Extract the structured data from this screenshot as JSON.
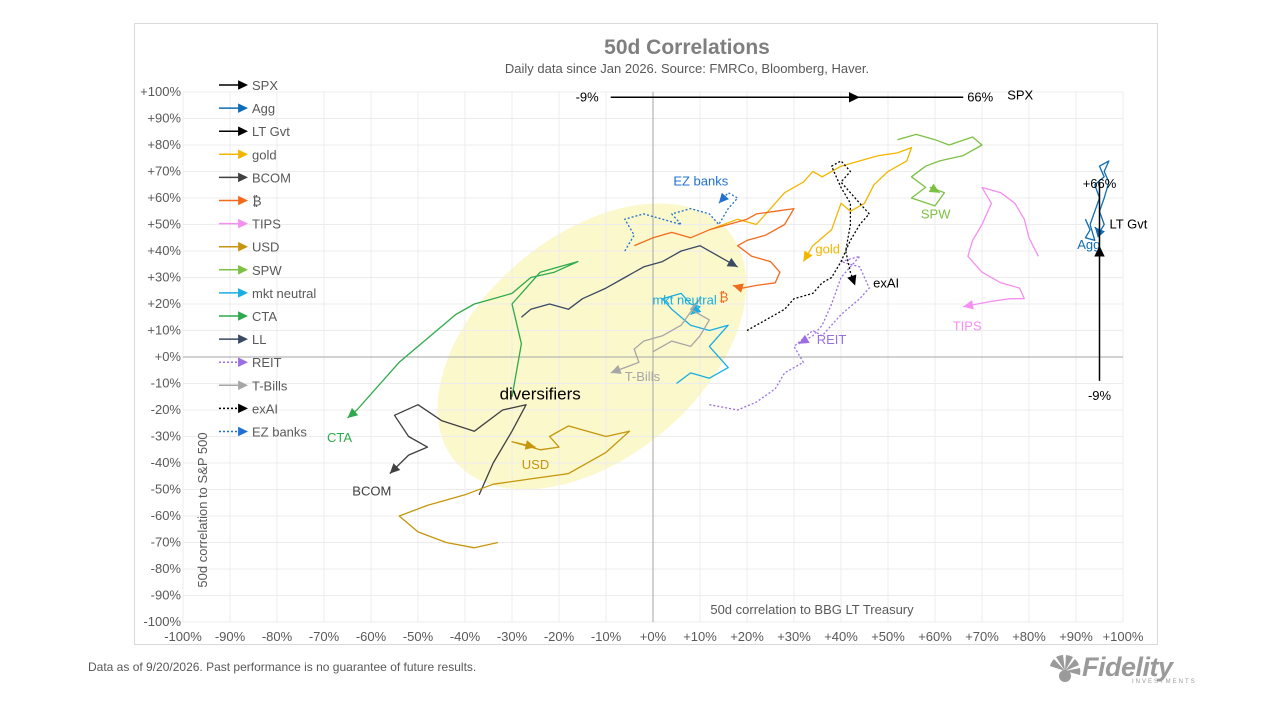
{
  "footnote": "Data as of 9/20/2026. Past performance is no guarantee of future results.",
  "logo": {
    "word": "Fidelity",
    "sub": "INVESTMENTS",
    "color": "#9a9a9a"
  },
  "chart_data": {
    "type": "scatter",
    "title": "50d Correlations",
    "subtitle": "Daily data since Jan 2026.  Source: FMRCo, Bloomberg, Haver.",
    "xlabel": "50d correlation to BBG LT Treasury",
    "ylabel": "50d correlation to S&P 500",
    "xlim": [
      -100,
      100
    ],
    "ylim": [
      -100,
      100
    ],
    "xticks": [
      "-100%",
      "-90%",
      "-80%",
      "-70%",
      "-60%",
      "-50%",
      "-40%",
      "-30%",
      "-20%",
      "-10%",
      "+0%",
      "+10%",
      "+20%",
      "+30%",
      "+40%",
      "+50%",
      "+60%",
      "+70%",
      "+80%",
      "+90%",
      "+100%"
    ],
    "yticks": [
      "+100%",
      "+90%",
      "+80%",
      "+70%",
      "+60%",
      "+50%",
      "+40%",
      "+30%",
      "+20%",
      "+10%",
      "+0%",
      "-10%",
      "-20%",
      "-30%",
      "-40%",
      "-50%",
      "-60%",
      "-70%",
      "-80%",
      "-90%",
      "-100%"
    ],
    "grid": true,
    "legend_position": "top-left",
    "highlight": {
      "label": "diversifiers",
      "center": [
        -13,
        4
      ],
      "radius_x": 38,
      "radius_y": 42,
      "rotation_deg": 40,
      "color": "#fbf8cc"
    },
    "spx_arrow": {
      "start": -9,
      "end": 66,
      "y": 98,
      "start_label": "-9%",
      "end_label": "66%",
      "series_label": "SPX"
    },
    "ltgvt_arrow": {
      "start": -9,
      "end": 66,
      "x": 95,
      "start_label": "-9%",
      "end_label": "+66%",
      "series_label": "LT Gvt"
    },
    "series": [
      {
        "name": "SPX",
        "color": "#000000",
        "dash": false,
        "points": []
      },
      {
        "name": "Agg",
        "color": "#0e6db5",
        "dash": false,
        "end_label": "Agg",
        "points": [
          [
            92,
            52
          ],
          [
            93,
            48
          ],
          [
            92,
            45
          ],
          [
            94,
            44
          ],
          [
            93,
            50
          ],
          [
            94,
            55
          ],
          [
            95,
            60
          ],
          [
            94,
            65
          ],
          [
            96,
            68
          ],
          [
            95,
            72
          ],
          [
            97,
            74
          ],
          [
            96,
            70
          ],
          [
            97,
            66
          ],
          [
            96,
            60
          ],
          [
            95,
            55
          ],
          [
            96,
            50
          ],
          [
            95,
            47
          ],
          [
            94,
            49
          ]
        ]
      },
      {
        "name": "LT Gvt",
        "color": "#000000",
        "dash": false,
        "points": []
      },
      {
        "name": "gold",
        "color": "#f2b600",
        "dash": false,
        "end_label": "gold",
        "points": [
          [
            12,
            48
          ],
          [
            18,
            52
          ],
          [
            22,
            50
          ],
          [
            26,
            58
          ],
          [
            28,
            62
          ],
          [
            32,
            66
          ],
          [
            34,
            70
          ],
          [
            36,
            68
          ],
          [
            40,
            72
          ],
          [
            44,
            74
          ],
          [
            48,
            76
          ],
          [
            52,
            77
          ],
          [
            55,
            79
          ],
          [
            54,
            74
          ],
          [
            50,
            70
          ],
          [
            47,
            65
          ],
          [
            45,
            58
          ],
          [
            42,
            55
          ],
          [
            40,
            58
          ],
          [
            38,
            48
          ],
          [
            34,
            42
          ],
          [
            32,
            36
          ]
        ]
      },
      {
        "name": "BCOM",
        "color": "#404040",
        "dash": false,
        "end_label": "BCOM",
        "points": [
          [
            -37,
            -52
          ],
          [
            -34,
            -40
          ],
          [
            -30,
            -28
          ],
          [
            -27,
            -18
          ],
          [
            -32,
            -20
          ],
          [
            -38,
            -28
          ],
          [
            -45,
            -24
          ],
          [
            -50,
            -18
          ],
          [
            -55,
            -22
          ],
          [
            -52,
            -30
          ],
          [
            -48,
            -34
          ],
          [
            -52,
            -37
          ],
          [
            -56,
            -44
          ]
        ]
      },
      {
        "name": "₿",
        "color": "#f26b1d",
        "dash": false,
        "end_label": "₿",
        "points": [
          [
            -4,
            42
          ],
          [
            0,
            45
          ],
          [
            4,
            47
          ],
          [
            8,
            45
          ],
          [
            12,
            48
          ],
          [
            16,
            50
          ],
          [
            20,
            52
          ],
          [
            22,
            54
          ],
          [
            26,
            55
          ],
          [
            30,
            56
          ],
          [
            28,
            50
          ],
          [
            24,
            46
          ],
          [
            20,
            44
          ],
          [
            18,
            42
          ],
          [
            21,
            38
          ],
          [
            25,
            36
          ],
          [
            27,
            32
          ],
          [
            26,
            28
          ],
          [
            22,
            27
          ],
          [
            19,
            26
          ],
          [
            17,
            27
          ]
        ]
      },
      {
        "name": "TIPS",
        "color": "#f58ff0",
        "dash": false,
        "end_label": "TIPS",
        "points": [
          [
            82,
            38
          ],
          [
            80,
            45
          ],
          [
            79,
            52
          ],
          [
            77,
            58
          ],
          [
            74,
            62
          ],
          [
            70,
            64
          ],
          [
            72,
            58
          ],
          [
            70,
            50
          ],
          [
            68,
            44
          ],
          [
            67,
            38
          ],
          [
            70,
            32
          ],
          [
            74,
            28
          ],
          [
            78,
            26
          ],
          [
            79,
            22
          ],
          [
            76,
            22
          ],
          [
            72,
            21
          ],
          [
            69,
            20
          ],
          [
            66,
            19
          ]
        ]
      },
      {
        "name": "USD",
        "color": "#c5960c",
        "dash": false,
        "end_label": "USD",
        "points": [
          [
            -33,
            -70
          ],
          [
            -38,
            -72
          ],
          [
            -44,
            -70
          ],
          [
            -50,
            -66
          ],
          [
            -54,
            -60
          ],
          [
            -48,
            -56
          ],
          [
            -40,
            -52
          ],
          [
            -34,
            -48
          ],
          [
            -26,
            -46
          ],
          [
            -18,
            -44
          ],
          [
            -10,
            -36
          ],
          [
            -5,
            -28
          ],
          [
            -10,
            -30
          ],
          [
            -18,
            -26
          ],
          [
            -22,
            -30
          ],
          [
            -20,
            -34
          ],
          [
            -24,
            -35
          ],
          [
            -28,
            -33
          ],
          [
            -30,
            -32
          ],
          [
            -25,
            -34
          ]
        ]
      },
      {
        "name": "SPW",
        "color": "#7cc143",
        "dash": false,
        "end_label": "SPW",
        "points": [
          [
            52,
            82
          ],
          [
            56,
            84
          ],
          [
            60,
            82
          ],
          [
            63,
            80
          ],
          [
            68,
            83
          ],
          [
            70,
            80
          ],
          [
            66,
            76
          ],
          [
            61,
            74
          ],
          [
            58,
            72
          ],
          [
            55,
            68
          ],
          [
            58,
            64
          ],
          [
            55,
            60
          ],
          [
            60,
            57
          ],
          [
            62,
            62
          ],
          [
            59,
            64
          ],
          [
            61,
            62
          ]
        ]
      },
      {
        "name": "mkt neutral",
        "color": "#19aee0",
        "dash": false,
        "end_label": "mkt neutral",
        "points": [
          [
            5,
            -10
          ],
          [
            8,
            -6
          ],
          [
            12,
            -8
          ],
          [
            16,
            -4
          ],
          [
            12,
            4
          ],
          [
            14,
            8
          ],
          [
            16,
            12
          ],
          [
            12,
            10
          ],
          [
            8,
            12
          ],
          [
            4,
            18
          ],
          [
            2,
            22
          ],
          [
            6,
            24
          ],
          [
            8,
            20
          ],
          [
            10,
            19
          ],
          [
            8,
            16
          ]
        ]
      },
      {
        "name": "CTA",
        "color": "#2eaa4d",
        "dash": false,
        "end_label": "CTA",
        "points": [
          [
            -30,
            -15
          ],
          [
            -28,
            5
          ],
          [
            -30,
            20
          ],
          [
            -26,
            28
          ],
          [
            -24,
            32
          ],
          [
            -20,
            34
          ],
          [
            -16,
            36
          ],
          [
            -21,
            32
          ],
          [
            -26,
            30
          ],
          [
            -30,
            24
          ],
          [
            -34,
            22
          ],
          [
            -38,
            20
          ],
          [
            -42,
            16
          ],
          [
            -46,
            10
          ],
          [
            -50,
            4
          ],
          [
            -54,
            -2
          ],
          [
            -57,
            -8
          ],
          [
            -60,
            -14
          ],
          [
            -63,
            -20
          ],
          [
            -65,
            -23
          ]
        ]
      },
      {
        "name": "LL",
        "color": "#3a4a63",
        "dash": false,
        "points": [
          [
            -28,
            15
          ],
          [
            -26,
            18
          ],
          [
            -22,
            20
          ],
          [
            -18,
            18
          ],
          [
            -15,
            22
          ],
          [
            -10,
            26
          ],
          [
            -6,
            30
          ],
          [
            -2,
            34
          ],
          [
            2,
            36
          ],
          [
            6,
            40
          ],
          [
            10,
            42
          ],
          [
            14,
            38
          ],
          [
            18,
            34
          ]
        ]
      },
      {
        "name": "REIT",
        "color": "#9b6fe2",
        "dash": true,
        "end_label": "REIT",
        "points": [
          [
            12,
            -18
          ],
          [
            18,
            -20
          ],
          [
            22,
            -17
          ],
          [
            26,
            -12
          ],
          [
            28,
            -6
          ],
          [
            32,
            -2
          ],
          [
            30,
            4
          ],
          [
            34,
            10
          ],
          [
            36,
            8
          ],
          [
            40,
            16
          ],
          [
            44,
            22
          ],
          [
            46,
            26
          ],
          [
            44,
            34
          ],
          [
            40,
            36
          ],
          [
            44,
            38
          ],
          [
            40,
            30
          ],
          [
            38,
            20
          ],
          [
            36,
            12
          ],
          [
            34,
            8
          ],
          [
            31,
            5
          ]
        ]
      },
      {
        "name": "T-Bills",
        "color": "#a6a6a6",
        "dash": false,
        "end_label": "T-Bills",
        "points": [
          [
            0,
            2
          ],
          [
            4,
            6
          ],
          [
            8,
            4
          ],
          [
            10,
            8
          ],
          [
            12,
            14
          ],
          [
            8,
            18
          ],
          [
            10,
            22
          ],
          [
            6,
            12
          ],
          [
            2,
            8
          ],
          [
            -2,
            6
          ],
          [
            -4,
            3
          ],
          [
            -3,
            -2
          ],
          [
            -6,
            -4
          ],
          [
            -9,
            -6
          ]
        ]
      },
      {
        "name": "exAI",
        "color": "#000000",
        "dash": true,
        "end_label": "exAI",
        "points": [
          [
            20,
            10
          ],
          [
            24,
            14
          ],
          [
            28,
            18
          ],
          [
            30,
            22
          ],
          [
            34,
            24
          ],
          [
            36,
            28
          ],
          [
            38,
            30
          ],
          [
            40,
            36
          ],
          [
            42,
            44
          ],
          [
            44,
            50
          ],
          [
            46,
            54
          ],
          [
            44,
            58
          ],
          [
            42,
            62
          ],
          [
            40,
            66
          ],
          [
            42,
            70
          ],
          [
            40,
            74
          ],
          [
            38,
            72
          ],
          [
            40,
            64
          ],
          [
            42,
            58
          ],
          [
            42,
            50
          ],
          [
            41,
            40
          ],
          [
            42,
            32
          ],
          [
            43,
            27
          ]
        ]
      },
      {
        "name": "EZ banks",
        "color": "#2170d0",
        "dash": true,
        "end_label": "EZ banks",
        "points": [
          [
            -6,
            40
          ],
          [
            -4,
            46
          ],
          [
            -6,
            52
          ],
          [
            -2,
            54
          ],
          [
            2,
            52
          ],
          [
            6,
            50
          ],
          [
            4,
            54
          ],
          [
            8,
            56
          ],
          [
            12,
            54
          ],
          [
            14,
            50
          ],
          [
            16,
            56
          ],
          [
            18,
            60
          ],
          [
            16,
            62
          ],
          [
            14,
            58
          ]
        ]
      }
    ]
  }
}
